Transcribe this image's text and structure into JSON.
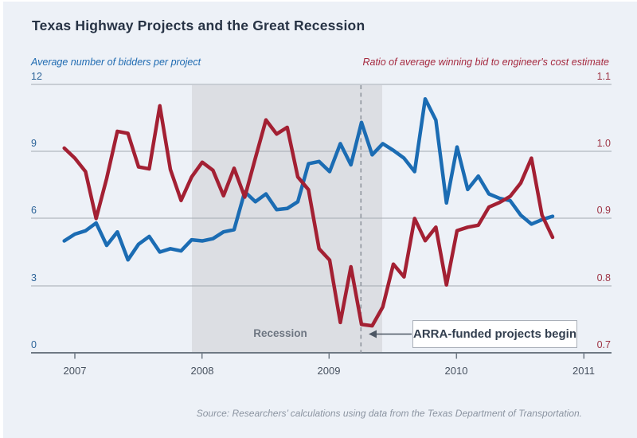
{
  "title": "Texas Highway Projects and the Great Recession",
  "left_axis": {
    "label": "Average number of bidders per project",
    "color": "#1e6ab1",
    "ticks": [
      "12",
      "9",
      "6",
      "3",
      "0"
    ]
  },
  "right_axis": {
    "label": "Ratio of average winning bid to engineer's cost estimate",
    "color": "#a5293f",
    "ticks": [
      "1.1",
      "1.0",
      "0.9",
      "0.8",
      "0.7"
    ]
  },
  "x_axis": {
    "years": [
      "2007",
      "2008",
      "2009",
      "2010",
      "2011"
    ]
  },
  "annotations": {
    "recession_label": "Recession",
    "arra_label": "ARRA-funded projects begin"
  },
  "source": "Source: Researchers’ calculations using data from the Texas Department of Transportation.",
  "colors": {
    "background": "#edf1f7",
    "bidders_line": "#1b6cb3",
    "ratio_line": "#a32033",
    "recession_band": "#dcdee3",
    "gridline": "#a3a9b2",
    "axis": "#6f7984"
  },
  "chart_data": {
    "type": "line",
    "x_unit": "month",
    "x_start": "2006-12",
    "x_end": "2010-10",
    "x_tick_years": [
      2007,
      2008,
      2009,
      2010,
      2011
    ],
    "grid": true,
    "left_ylim": [
      0,
      12
    ],
    "left_ticks": [
      0,
      3,
      6,
      9,
      12
    ],
    "right_ylim": [
      0.7,
      1.1
    ],
    "right_ticks": [
      0.7,
      0.8,
      0.9,
      1.0,
      1.1
    ],
    "recession_band": {
      "start": "2007-12",
      "end": "2009-06",
      "label": "Recession"
    },
    "dashed_line_x": "2009-04",
    "dashed_line_label": "ARRA-funded projects begin",
    "series": [
      {
        "name": "Average number of bidders per project",
        "axis": "left",
        "color": "#1b6cb3",
        "values": [
          5.0,
          5.3,
          5.45,
          5.8,
          4.8,
          5.4,
          4.15,
          4.85,
          5.2,
          4.5,
          4.65,
          4.55,
          5.05,
          5.0,
          5.1,
          5.4,
          5.5,
          7.2,
          6.75,
          7.1,
          6.4,
          6.45,
          6.75,
          8.45,
          8.55,
          8.1,
          9.35,
          8.4,
          10.3,
          8.85,
          9.35,
          9.05,
          8.7,
          8.1,
          11.35,
          10.4,
          6.7,
          9.2,
          7.3,
          7.9,
          7.1,
          6.9,
          6.8,
          6.15,
          5.75,
          5.95,
          6.1
        ]
      },
      {
        "name": "Ratio of average winning bid to engineer's cost estimate",
        "axis": "right",
        "color": "#a32033",
        "values": [
          1.005,
          0.99,
          0.97,
          0.9,
          0.96,
          1.03,
          1.027,
          0.977,
          0.974,
          1.068,
          0.973,
          0.927,
          0.962,
          0.984,
          0.972,
          0.934,
          0.975,
          0.932,
          0.99,
          1.047,
          1.026,
          1.036,
          0.962,
          0.943,
          0.855,
          0.838,
          0.745,
          0.828,
          0.742,
          0.74,
          0.768,
          0.832,
          0.813,
          0.9,
          0.867,
          0.887,
          0.801,
          0.882,
          0.887,
          0.89,
          0.917,
          0.924,
          0.933,
          0.953,
          0.99,
          0.905,
          0.872
        ]
      }
    ]
  }
}
